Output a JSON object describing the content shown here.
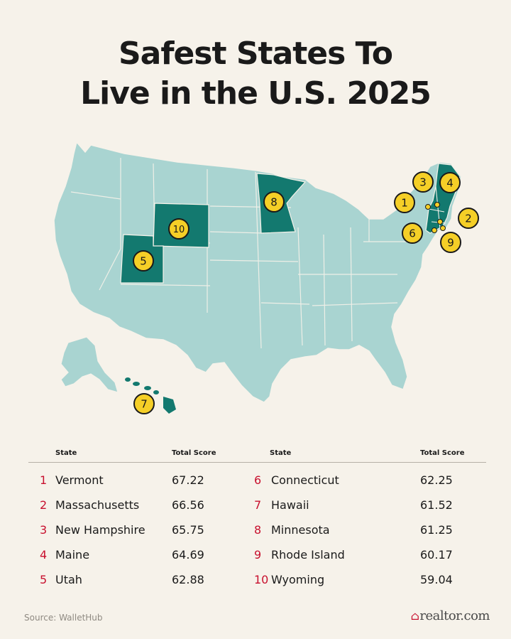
{
  "title": {
    "line1": "Safest States To",
    "line2": "Live in the U.S. 2025"
  },
  "colors": {
    "background": "#f6f2ea",
    "land": "#a9d4d1",
    "highlight": "#13796f",
    "marker": "#f5cf27",
    "rank": "#c8102e"
  },
  "table": {
    "headers": {
      "state": "State",
      "score": "Total Score"
    },
    "rows": [
      {
        "rank": "1",
        "state": "Vermont",
        "score": "67.22"
      },
      {
        "rank": "2",
        "state": "Massachusetts",
        "score": "66.56"
      },
      {
        "rank": "3",
        "state": "New Hampshire",
        "score": "65.75"
      },
      {
        "rank": "4",
        "state": "Maine",
        "score": "64.69"
      },
      {
        "rank": "5",
        "state": "Utah",
        "score": "62.88"
      },
      {
        "rank": "6",
        "state": "Connecticut",
        "score": "62.25"
      },
      {
        "rank": "7",
        "state": "Hawaii",
        "score": "61.52"
      },
      {
        "rank": "8",
        "state": "Minnesota",
        "score": "61.25"
      },
      {
        "rank": "9",
        "state": "Rhode Island",
        "score": "60.17"
      },
      {
        "rank": "10",
        "state": "Wyoming",
        "score": "59.04"
      }
    ]
  },
  "map_markers": [
    "1",
    "2",
    "3",
    "4",
    "5",
    "6",
    "7",
    "8",
    "9",
    "10"
  ],
  "footer": {
    "source": "Source: WalletHub",
    "brand": "realtor.com",
    "brand_icon": "house-icon"
  }
}
